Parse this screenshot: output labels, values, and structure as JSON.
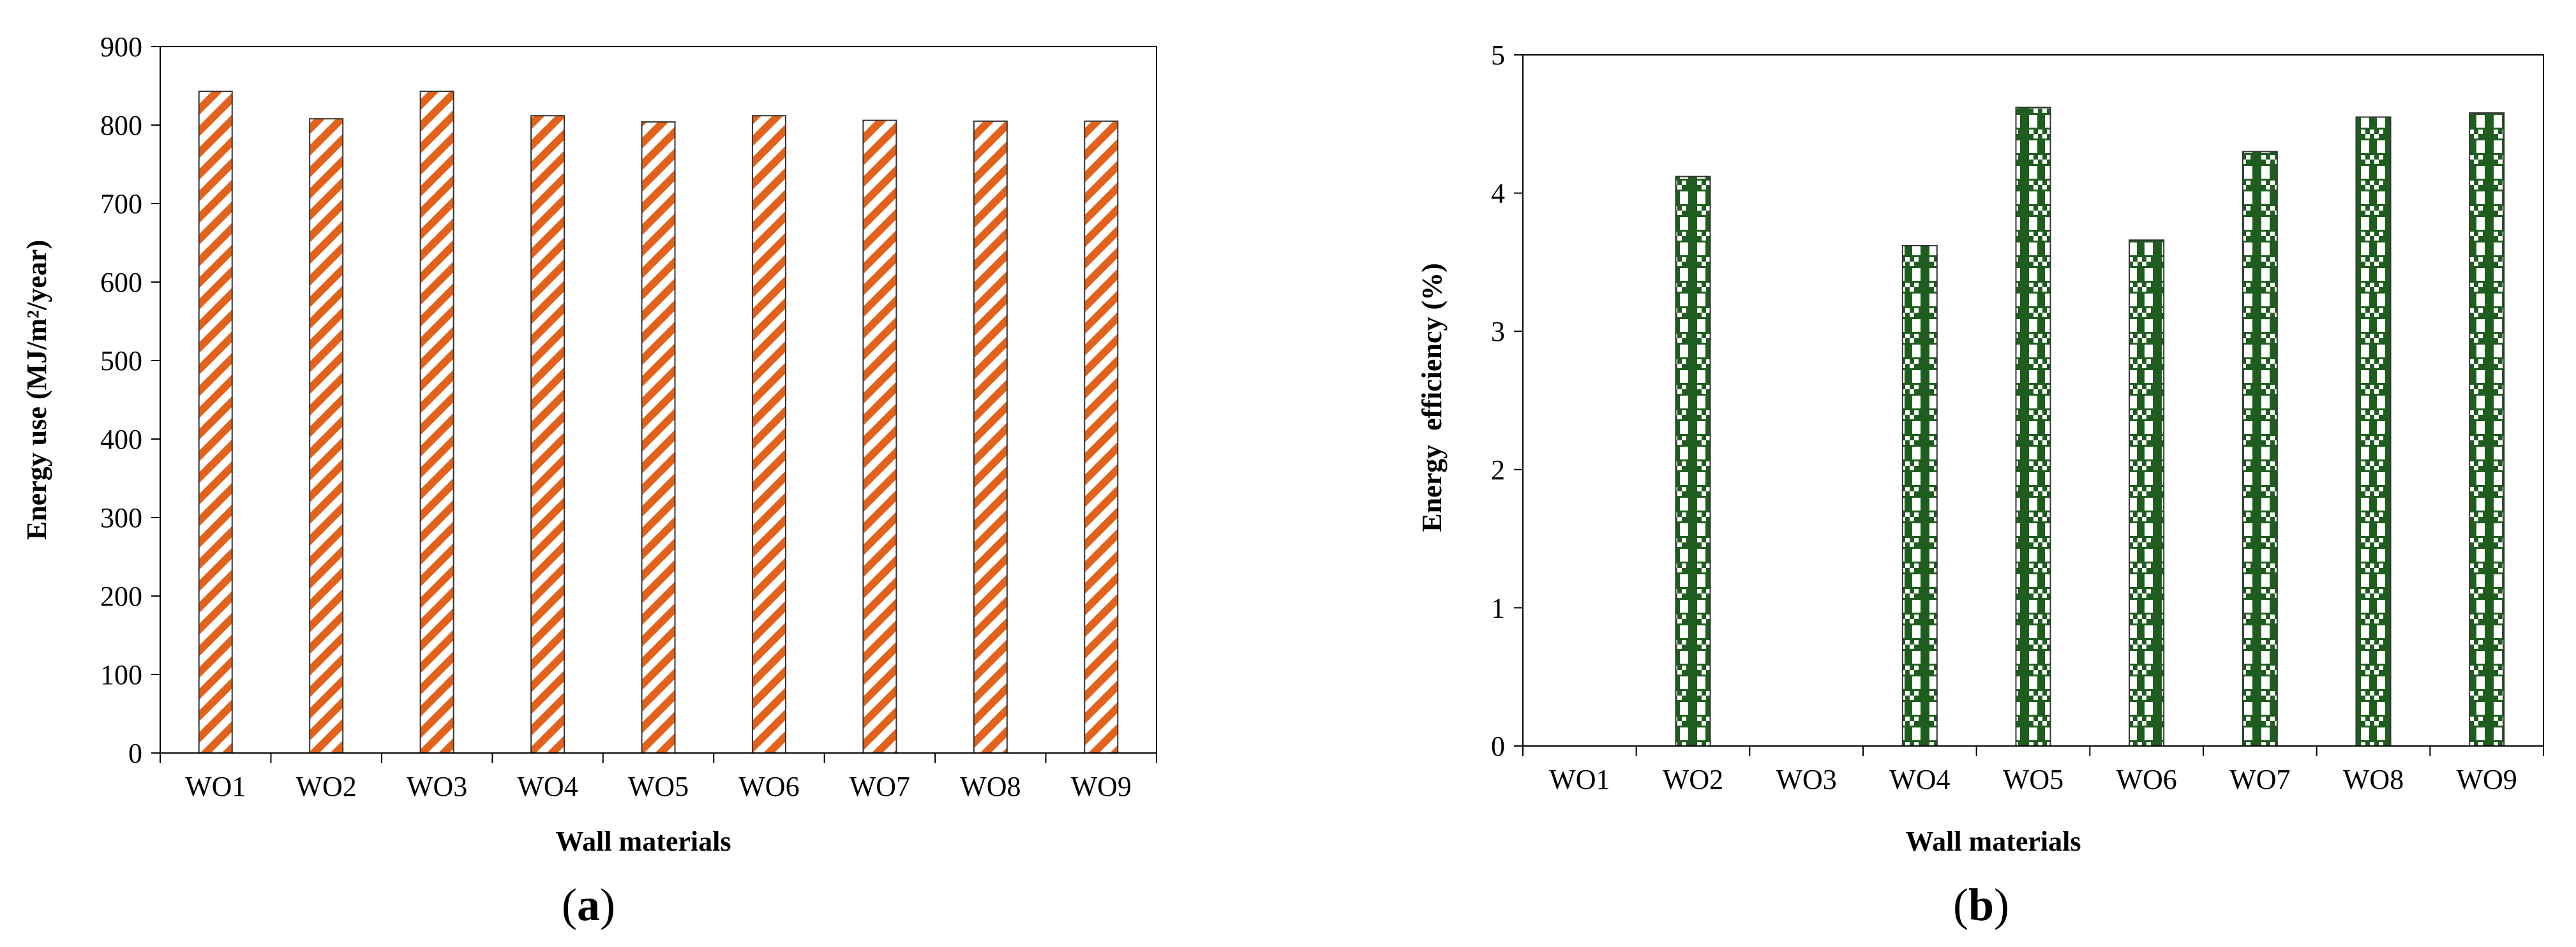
{
  "chart_data": [
    {
      "type": "bar",
      "panel_label": "a",
      "title": "",
      "xlabel": "Wall materials",
      "ylabel": "Energy use (MJ/m²/year)",
      "categories": [
        "WO1",
        "WO2",
        "WO3",
        "WO4",
        "WO5",
        "WO6",
        "WO7",
        "WO8",
        "WO9"
      ],
      "values": [
        843,
        808,
        843,
        812,
        804,
        812,
        806,
        805,
        805
      ],
      "ylim": [
        0,
        900
      ],
      "yticks": [
        0,
        100,
        200,
        300,
        400,
        500,
        600,
        700,
        800,
        900
      ],
      "grid": false,
      "bar_pattern": "diagonal-stripes",
      "bar_color": "#e2621c"
    },
    {
      "type": "bar",
      "panel_label": "b",
      "title": "",
      "xlabel": "Wall materials",
      "ylabel": "Energy  efficiency (%)",
      "categories": [
        "WO1",
        "WO2",
        "WO3",
        "WO4",
        "WO5",
        "WO6",
        "WO7",
        "WO8",
        "WO9"
      ],
      "values": [
        0,
        4.12,
        0,
        3.62,
        4.62,
        3.66,
        4.3,
        4.55,
        4.58
      ],
      "ylim": [
        0,
        5
      ],
      "yticks": [
        0,
        1,
        2,
        3,
        4,
        5
      ],
      "grid": false,
      "bar_pattern": "checkered",
      "bar_color": "#1f5d1f"
    }
  ]
}
